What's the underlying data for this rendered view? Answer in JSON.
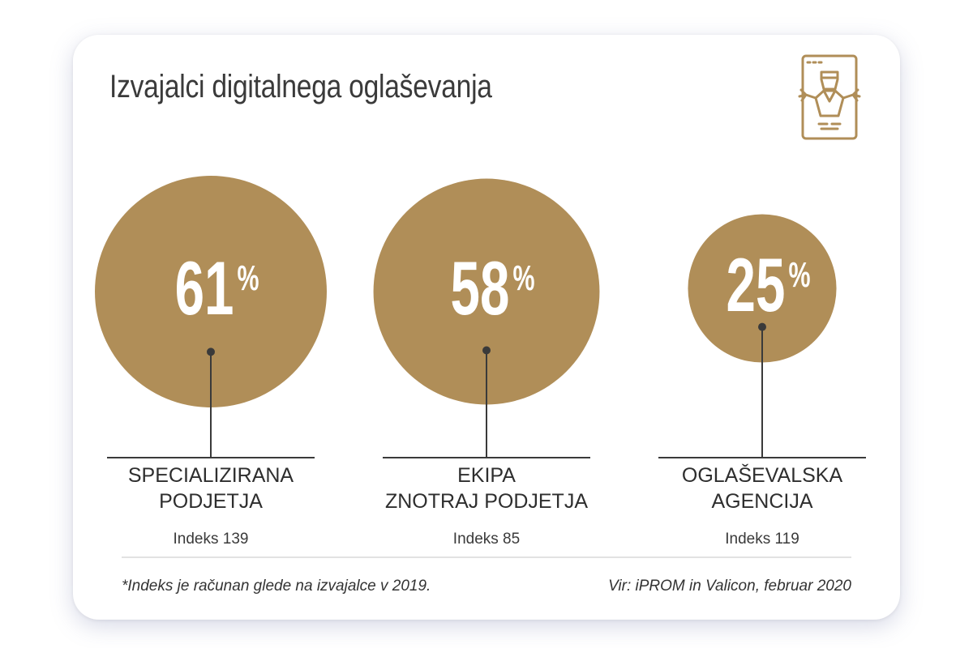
{
  "title": "Izvajalci digitalnega oglaševanja",
  "icon": "person-on-screen-icon",
  "colors": {
    "accent": "#B08E58",
    "text": "#333333",
    "line": "#3a3a3a"
  },
  "chart_data": {
    "type": "bubble",
    "unit": "%",
    "categories": [
      {
        "name_lines": [
          "SPECIALIZIRANA",
          "PODJETJA"
        ],
        "value": 61,
        "value_text": "61",
        "index_text": "Indeks 139"
      },
      {
        "name_lines": [
          "EKIPA",
          "ZNOTRAJ PODJETJA"
        ],
        "value": 58,
        "value_text": "58",
        "index_text": "Indeks 85"
      },
      {
        "name_lines": [
          "OGLAŠEVALSKA",
          "AGENCIJA"
        ],
        "value": 25,
        "value_text": "25",
        "index_text": "Indeks 119"
      }
    ]
  },
  "footnote": "*Indeks je računan glede na izvajalce v 2019.",
  "source": "Vir: iPROM in Valicon, februar 2020"
}
